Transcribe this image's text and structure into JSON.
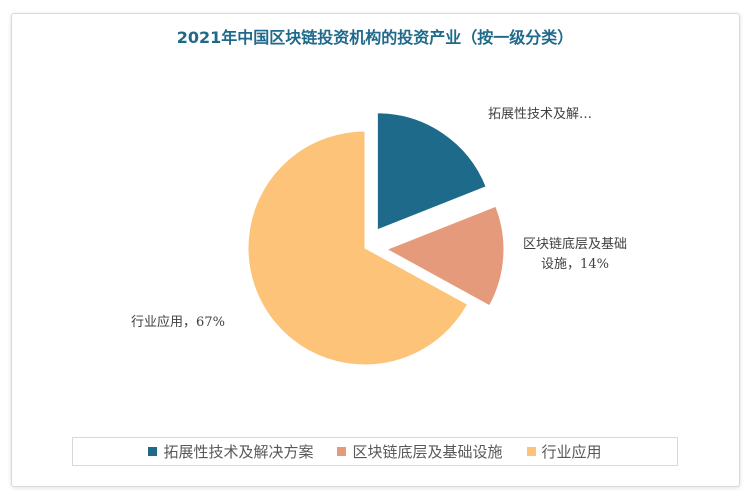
{
  "chart_data": {
    "type": "pie",
    "title": "2021年中国区块链投资机构的投资产业（按一级分类）",
    "categories": [
      "拓展性技术及解决方案",
      "区块链底层及基础设施",
      "行业应用"
    ],
    "values": [
      19,
      14,
      67
    ],
    "colors": [
      "#1e6a8a",
      "#e59a7b",
      "#fdc378"
    ],
    "exploded": [
      true,
      true,
      false
    ],
    "data_labels": [
      {
        "lines": [
          "拓展性技术及解…"
        ]
      },
      {
        "lines": [
          "区块链底层及基础",
          "设施，14%"
        ]
      },
      {
        "lines": [
          "行业应用，67%"
        ]
      }
    ],
    "legend_position": "bottom"
  }
}
